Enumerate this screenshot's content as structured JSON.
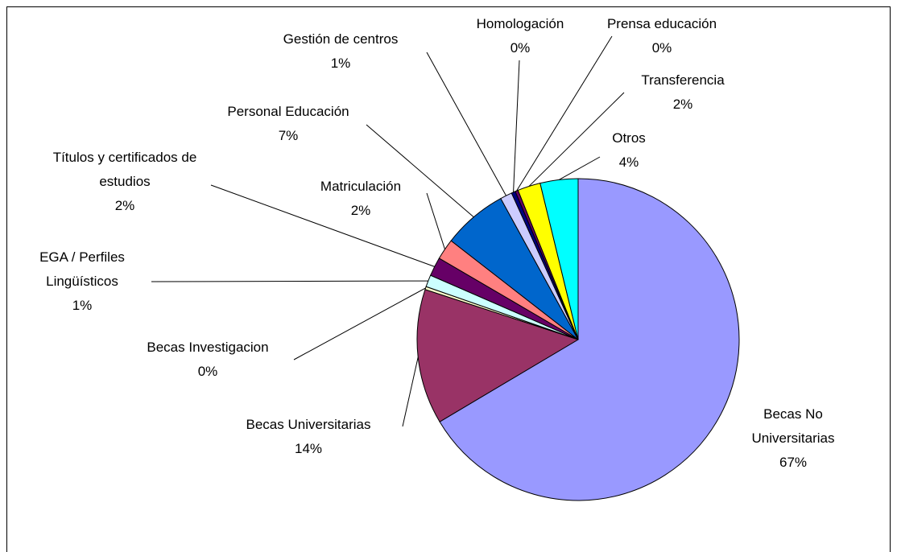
{
  "chart_data": {
    "type": "pie",
    "categories": [
      "Becas No Universitarias",
      "Becas Universitarias",
      "Becas Investigacion",
      "EGA / Perfiles Lingüísticos",
      "Títulos y certificados de estudios",
      "Matriculación",
      "Personal Educación",
      "Gestión de centros",
      "Homologación",
      "Prensa educación",
      "Transferencia",
      "Otros"
    ],
    "values": [
      66.6,
      13.6,
      0.3,
      1.2,
      1.9,
      2.1,
      6.5,
      1.2,
      0.4,
      0.3,
      2.3,
      3.8
    ],
    "value_labels": [
      "67%",
      "14%",
      "0%",
      "1%",
      "2%",
      "2%",
      "7%",
      "1%",
      "0%",
      "0%",
      "2%",
      "4%"
    ],
    "colors": [
      "#9999ff",
      "#993366",
      "#ffffcc",
      "#ccffff",
      "#660066",
      "#ff8080",
      "#0066cc",
      "#ccccff",
      "#000080",
      "#660066",
      "#ffff00",
      "#00ffff"
    ]
  }
}
